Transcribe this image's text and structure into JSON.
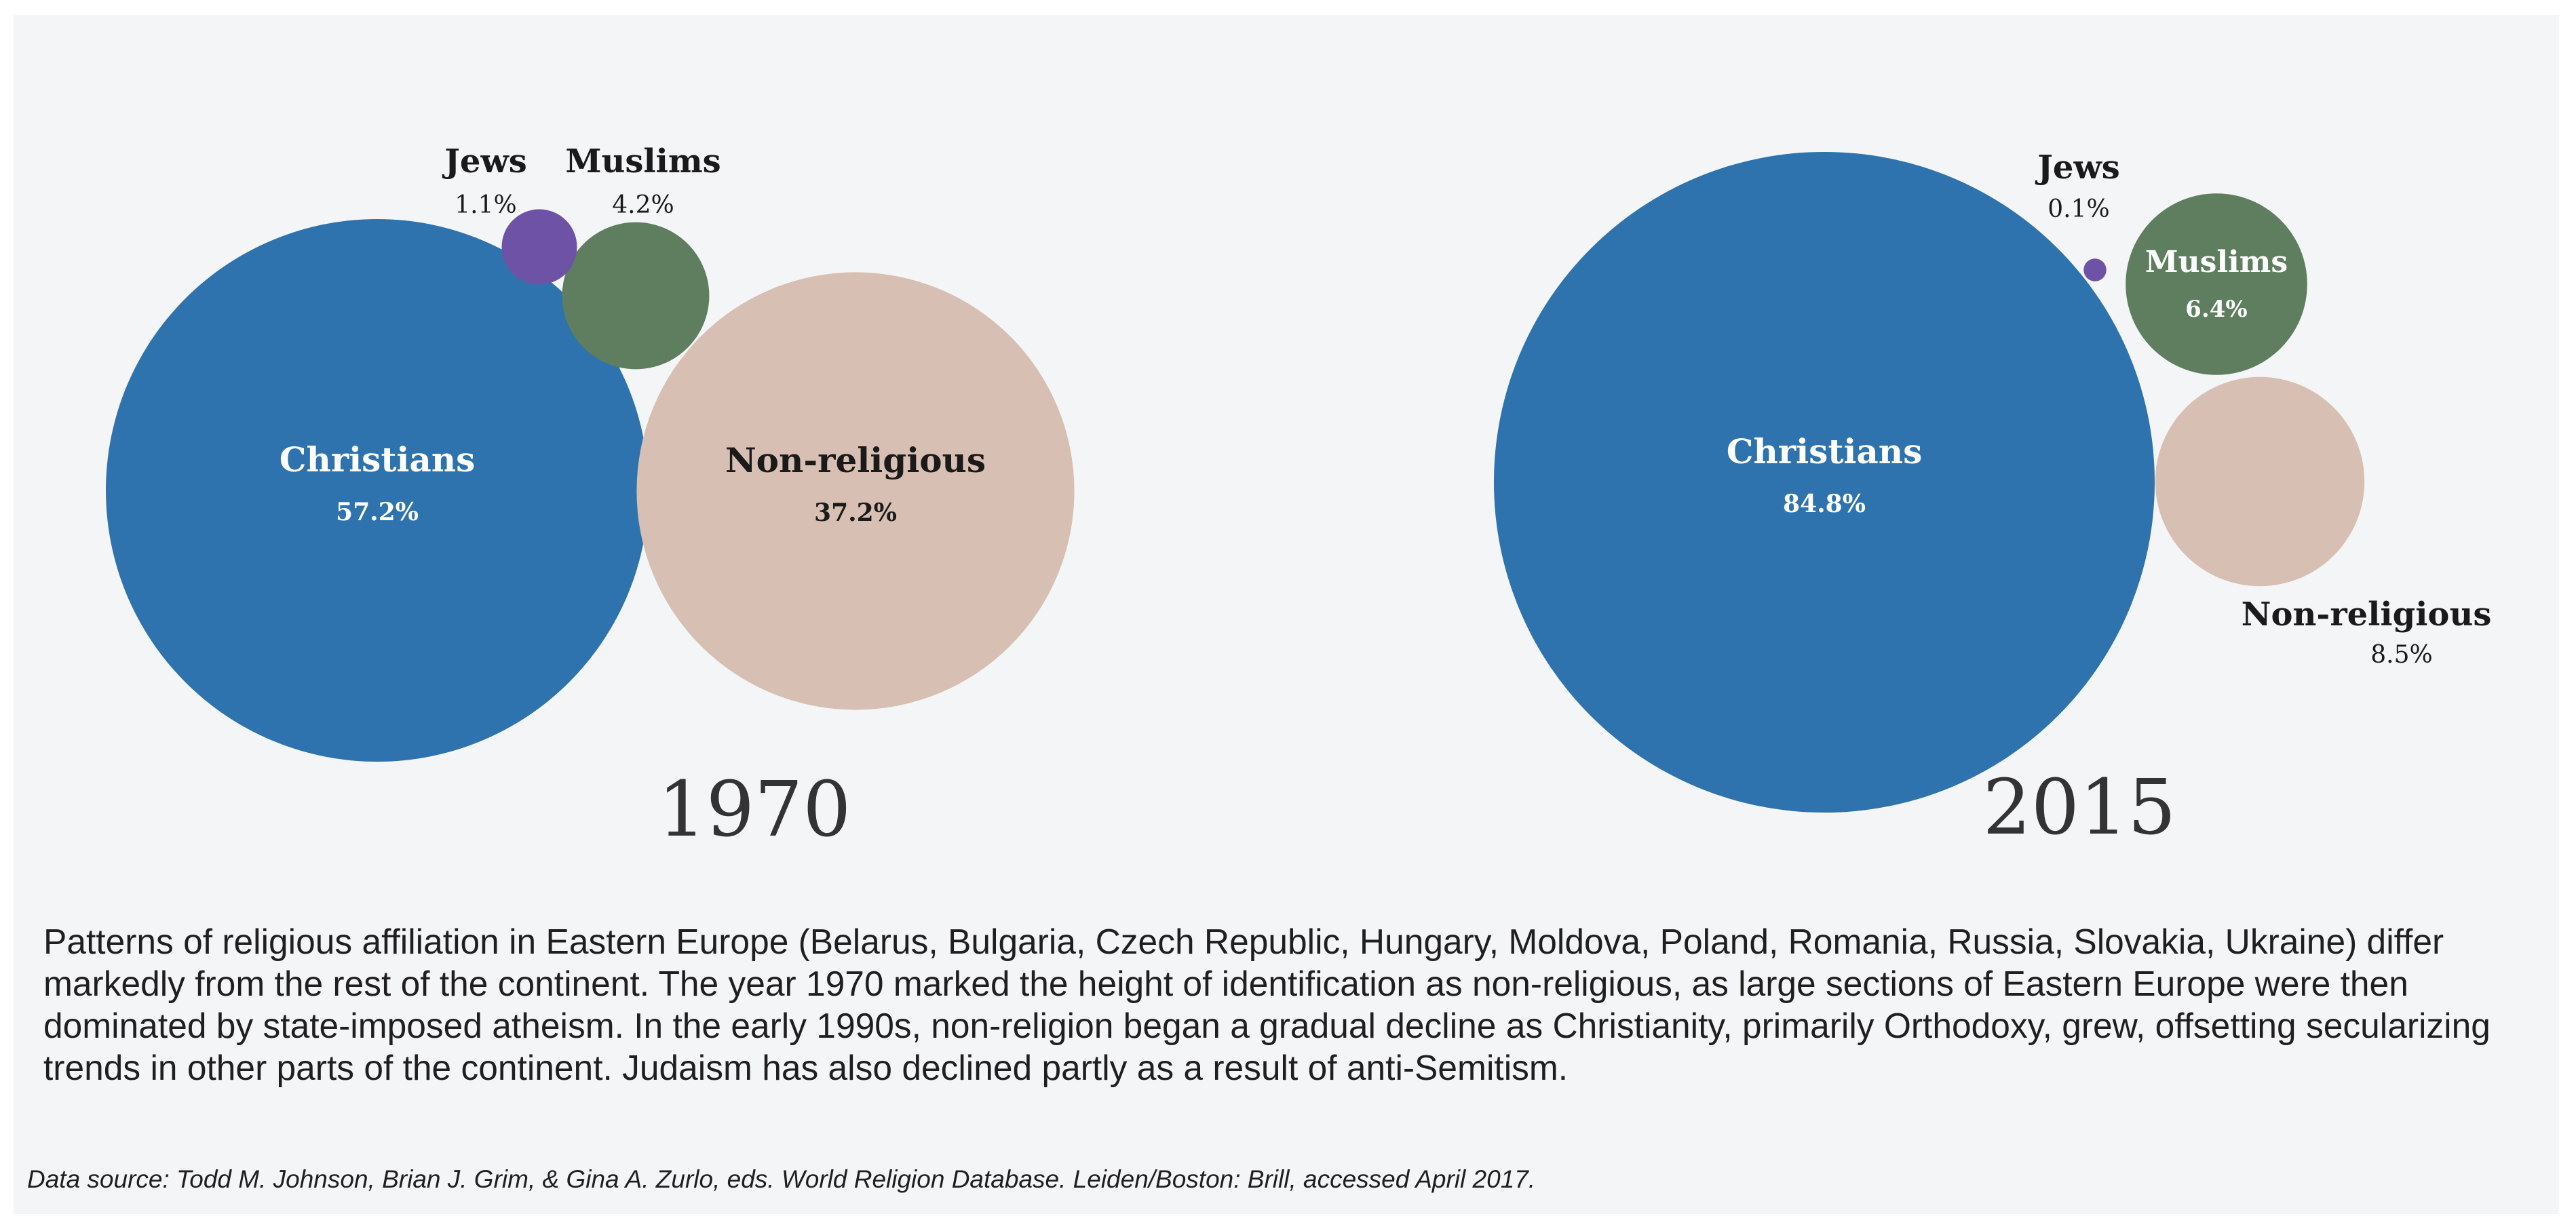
{
  "chart_data": [
    {
      "type": "bubble",
      "title": "1970",
      "series": [
        {
          "name": "Christians",
          "value": 57.2,
          "label": "57.2%",
          "color": "#2e73ad"
        },
        {
          "name": "Non-religious",
          "value": 37.2,
          "label": "37.2%",
          "color": "#d7bfb3"
        },
        {
          "name": "Muslims",
          "value": 4.2,
          "label": "4.2%",
          "color": "#5e7e5f"
        },
        {
          "name": "Jews",
          "value": 1.1,
          "label": "1.1%",
          "color": "#6e52a5"
        }
      ]
    },
    {
      "type": "bubble",
      "title": "2015",
      "series": [
        {
          "name": "Christians",
          "value": 84.8,
          "label": "84.8%",
          "color": "#2e73ad"
        },
        {
          "name": "Non-religious",
          "value": 8.5,
          "label": "8.5%",
          "color": "#d7bfb3"
        },
        {
          "name": "Muslims",
          "value": 6.4,
          "label": "6.4%",
          "color": "#5e7e5f"
        },
        {
          "name": "Jews",
          "value": 0.1,
          "label": "0.1%",
          "color": "#6e52a5"
        }
      ]
    }
  ],
  "caption": "Patterns of religious affiliation in Eastern Europe (Belarus, Bulgaria, Czech Republic, Hungary, Moldova, Poland, Romania, Russia, Slovakia, Ukraine) differ markedly from the rest of the continent. The year 1970 marked the height of identification as non-religious, as large sections of Eastern Europe were then dominated by state-imposed atheism. In the early 1990s, non-religion began a gradual decline as Christianity, primarily Orthodoxy, grew, offsetting secularizing trends in other parts of the continent. Judaism has also declined partly as a result of anti-Semitism.",
  "source": "Data source: Todd M. Johnson, Brian J. Grim, & Gina A. Zurlo, eds. World Religion Database. Leiden/Boston: Brill, accessed April 2017."
}
